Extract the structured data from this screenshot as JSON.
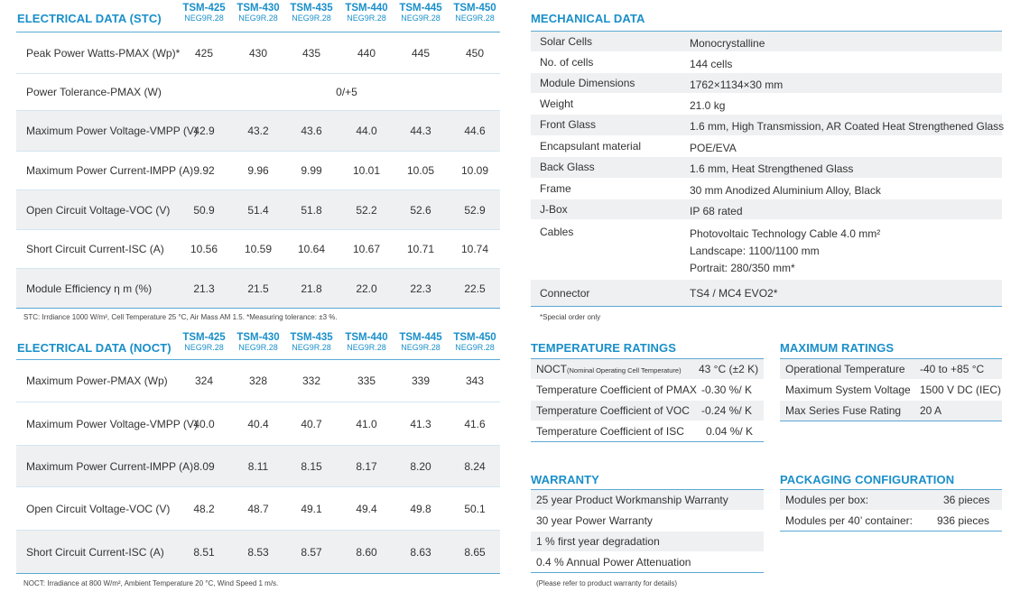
{
  "stc": {
    "title": "ELECTRICAL DATA (STC)",
    "models": [
      {
        "name": "TSM-425",
        "sub": "NEG9R.28"
      },
      {
        "name": "TSM-430",
        "sub": "NEG9R.28"
      },
      {
        "name": "TSM-435",
        "sub": "NEG9R.28"
      },
      {
        "name": "TSM-440",
        "sub": "NEG9R.28"
      },
      {
        "name": "TSM-445",
        "sub": "NEG9R.28"
      },
      {
        "name": "TSM-450",
        "sub": "NEG9R.28"
      }
    ],
    "rows": [
      {
        "label": "Peak Power Watts-PMAX (Wp)*",
        "values": [
          "425",
          "430",
          "435",
          "440",
          "445",
          "450"
        ]
      },
      {
        "label": "Power Tolerance-PMAX (W)",
        "span": "0/+5"
      },
      {
        "label": "Maximum Power Voltage-VMPP (V)",
        "values": [
          "42.9",
          "43.2",
          "43.6",
          "44.0",
          "44.3",
          "44.6"
        ]
      },
      {
        "label": "Maximum Power Current-IMPP (A)",
        "values": [
          "9.92",
          "9.96",
          "9.99",
          "10.01",
          "10.05",
          "10.09"
        ]
      },
      {
        "label": "Open Circuit Voltage-VOC (V)",
        "values": [
          "50.9",
          "51.4",
          "51.8",
          "52.2",
          "52.6",
          "52.9"
        ]
      },
      {
        "label": "Short Circuit Current-ISC (A)",
        "values": [
          "10.56",
          "10.59",
          "10.64",
          "10.67",
          "10.71",
          "10.74"
        ]
      },
      {
        "label": "Module Efficiency η m (%)",
        "values": [
          "21.3",
          "21.5",
          "21.8",
          "22.0",
          "22.3",
          "22.5"
        ]
      }
    ],
    "note": "STC: Irrdiance 1000 W/m², Cell Temperature 25 °C, Air Mass AM 1.5. *Measuring tolerance: ±3 %."
  },
  "noct": {
    "title": "ELECTRICAL DATA (NOCT)",
    "models": [
      {
        "name": "TSM-425",
        "sub": "NEG9R.28"
      },
      {
        "name": "TSM-430",
        "sub": "NEG9R.28"
      },
      {
        "name": "TSM-435",
        "sub": "NEG9R.28"
      },
      {
        "name": "TSM-440",
        "sub": "NEG9R.28"
      },
      {
        "name": "TSM-445",
        "sub": "NEG9R.28"
      },
      {
        "name": "TSM-450",
        "sub": "NEG9R.28"
      }
    ],
    "rows": [
      {
        "label": "Maximum Power-PMAX (Wp)",
        "values": [
          "324",
          "328",
          "332",
          "335",
          "339",
          "343"
        ]
      },
      {
        "label": "Maximum Power Voltage-VMPP (V)",
        "values": [
          "40.0",
          "40.4",
          "40.7",
          "41.0",
          "41.3",
          "41.6"
        ]
      },
      {
        "label": "Maximum Power Current-IMPP (A)",
        "values": [
          "8.09",
          "8.11",
          "8.15",
          "8.17",
          "8.20",
          "8.24"
        ]
      },
      {
        "label": "Open Circuit Voltage-VOC (V)",
        "values": [
          "48.2",
          "48.7",
          "49.1",
          "49.4",
          "49.8",
          "50.1"
        ]
      },
      {
        "label": "Short Circuit Current-ISC (A)",
        "values": [
          "8.51",
          "8.53",
          "8.57",
          "8.60",
          "8.63",
          "8.65"
        ]
      }
    ],
    "note": "NOCT: Irradiance at 800 W/m², Ambient Temperature 20 °C, Wind Speed 1 m/s."
  },
  "mechanical": {
    "title": "MECHANICAL DATA",
    "rows": [
      {
        "key": "Solar Cells",
        "value": "Monocrystalline"
      },
      {
        "key": "No. of cells",
        "value": "144 cells"
      },
      {
        "key": "Module Dimensions",
        "value": "1762×1134×30 mm"
      },
      {
        "key": "Weight",
        "value": "21.0 kg"
      },
      {
        "key": "Front Glass",
        "value": "1.6 mm, High Transmission, AR Coated Heat Strengthened Glass"
      },
      {
        "key": "Encapsulant material",
        "value": "POE/EVA"
      },
      {
        "key": "Back Glass",
        "value": "1.6 mm, Heat Strengthened Glass"
      },
      {
        "key": "Frame",
        "value": "30 mm Anodized  Aluminium Alloy, Black"
      },
      {
        "key": "J-Box",
        "value": "IP 68 rated"
      },
      {
        "key": "Cables",
        "lines": [
          "Photovoltaic Technology Cable 4.0 mm²",
          "Landscape: 1100/1100 mm",
          "Portrait: 280/350 mm*"
        ]
      },
      {
        "key": "Connector",
        "value": "TS4 / MC4 EVO2*"
      }
    ],
    "note": "*Special order only"
  },
  "temperature": {
    "title": "TEMPERATURE RATINGS",
    "rows": [
      {
        "key": "NOCT",
        "key_sub": "(Nominal Operating Cell Temperature)",
        "value": "43 °C (±2 K)"
      },
      {
        "key": "Temperature Coefficient of PMAX",
        "value": "-0.30 %/ K"
      },
      {
        "key": "Temperature Coefficient of VOC",
        "value": "-0.24 %/ K"
      },
      {
        "key": "Temperature Coefficient of ISC",
        "value": "0.04 %/ K"
      }
    ]
  },
  "maximum": {
    "title": "MAXIMUM RATINGS",
    "rows": [
      {
        "key": "Operational Temperature",
        "value": "-40 to +85 °C"
      },
      {
        "key": "Maximum System Voltage",
        "value": "1500 V DC (IEC)"
      },
      {
        "key": "Max Series Fuse Rating",
        "value": "20 A"
      }
    ]
  },
  "warranty": {
    "title": "WARRANTY",
    "rows": [
      "25 year Product Workmanship Warranty",
      "30 year Power Warranty",
      "1 % first year degradation",
      "0.4 % Annual Power Attenuation"
    ],
    "note": "(Please refer to product warranty for details)"
  },
  "packaging": {
    "title": "PACKAGING CONFIGURATION",
    "rows": [
      {
        "key": "Modules per box:",
        "value": "36 pieces"
      },
      {
        "key": "Modules per 40’ container:",
        "value": "936 pieces"
      }
    ]
  }
}
